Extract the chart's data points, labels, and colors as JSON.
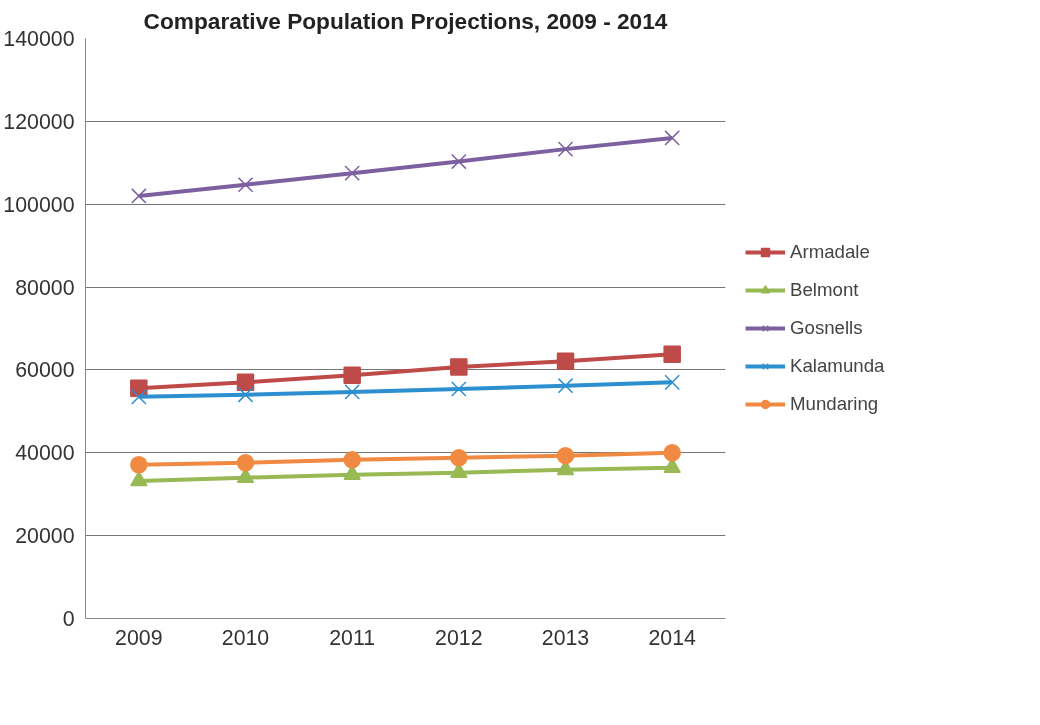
{
  "chart_data": {
    "type": "line",
    "title": "Comparative Population Projections, 2009 - 2014",
    "categories": [
      "2009",
      "2010",
      "2011",
      "2012",
      "2013",
      "2014"
    ],
    "series": [
      {
        "name": "Armadale",
        "color": "#be4b48",
        "marker": "square",
        "values": [
          55600,
          57000,
          58700,
          60700,
          62100,
          63800
        ]
      },
      {
        "name": "Belmont",
        "color": "#98b954",
        "marker": "triangle",
        "values": [
          33200,
          34000,
          34700,
          35200,
          35900,
          36400
        ]
      },
      {
        "name": "Gosnells",
        "color": "#7d60a0",
        "marker": "cross",
        "values": [
          102000,
          104700,
          107500,
          110300,
          113300,
          116000
        ]
      },
      {
        "name": "Kalamunda",
        "color": "#2e8fd0",
        "marker": "cross",
        "values": [
          53500,
          54000,
          54700,
          55400,
          56200,
          57000
        ]
      },
      {
        "name": "Mundaring",
        "color": "#f08a42",
        "marker": "circle",
        "values": [
          37100,
          37600,
          38300,
          38800,
          39300,
          40000
        ]
      }
    ],
    "ylim": [
      0,
      140000
    ],
    "yticks": [
      0,
      20000,
      40000,
      60000,
      80000,
      100000,
      120000,
      140000
    ],
    "grid": "y",
    "legend": "right"
  }
}
